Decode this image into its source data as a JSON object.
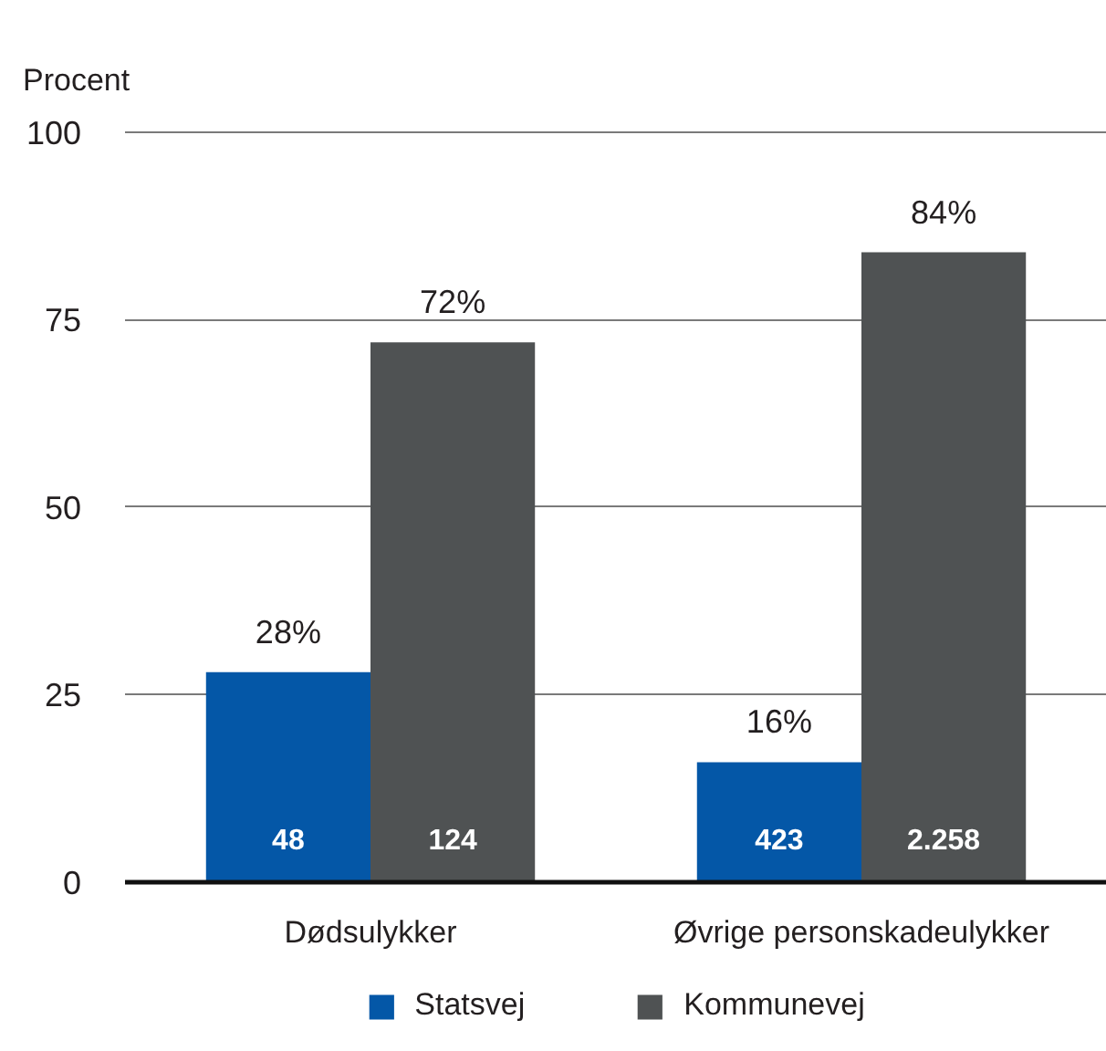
{
  "chart_data": {
    "type": "bar",
    "ylabel": "Procent",
    "categories": [
      "Dødsulykker",
      "Øvrige personskadeulykker"
    ],
    "series": [
      {
        "name": "Statsvej",
        "color": "#0457a7",
        "values": [
          28,
          16
        ],
        "value_labels": [
          "28%",
          "16%"
        ]
      },
      {
        "name": "Kommunevej",
        "color": "#4f5253",
        "values": [
          72,
          84
        ],
        "value_labels": [
          "72%",
          "84%"
        ]
      }
    ],
    "annotations": [
      "48",
      "124",
      "423",
      "2.258"
    ],
    "ylim": [
      0,
      100
    ],
    "yticks": [
      0,
      25,
      50,
      75,
      100
    ],
    "grid": "y",
    "legend": "bottom"
  }
}
